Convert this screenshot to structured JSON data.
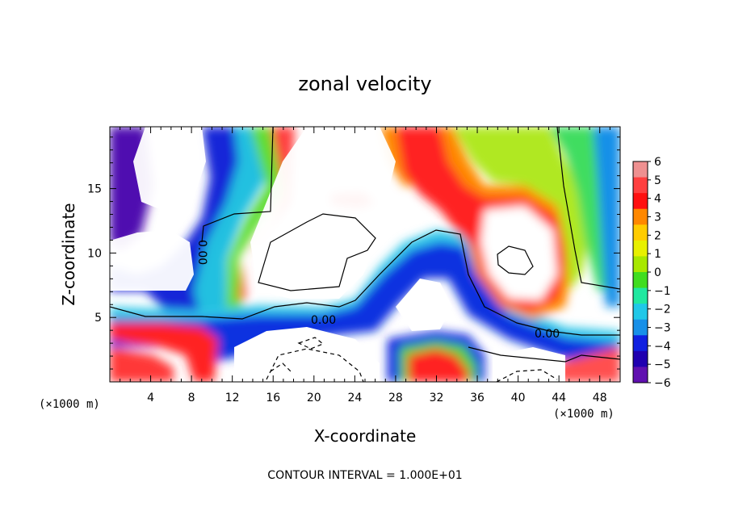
{
  "chart_data": {
    "type": "heatmap",
    "title": "zonal velocity",
    "xlabel": "X-coordinate",
    "ylabel": "Z-coordinate",
    "x_unit": "(×1000 m)",
    "x_ticks": [
      4,
      8,
      12,
      16,
      20,
      24,
      28,
      32,
      36,
      40,
      44,
      48
    ],
    "y_ticks": [
      5,
      10,
      15
    ],
    "xlim": [
      0,
      50
    ],
    "ylim": [
      0,
      19.8
    ],
    "color_range": [
      -6,
      6
    ],
    "colorbar_ticks": [
      "6",
      "5",
      "4",
      "3",
      "2",
      "1",
      "0",
      "−1",
      "−2",
      "−3",
      "−4",
      "−5",
      "−6"
    ],
    "colorbar_colors": [
      "#ee9090",
      "#ff4040",
      "#ff1010",
      "#ff8800",
      "#ffcc00",
      "#e8f000",
      "#a8e800",
      "#40dd20",
      "#20e8a0",
      "#20c8e8",
      "#1890e8",
      "#1020e0",
      "#2000b0",
      "#6010b0"
    ],
    "contour_labels": [
      "0.00",
      "0.00",
      "0.00"
    ],
    "note": "CONTOUR INTERVAL = 1.000E+01",
    "grid": false,
    "legend": "colorbar right"
  }
}
